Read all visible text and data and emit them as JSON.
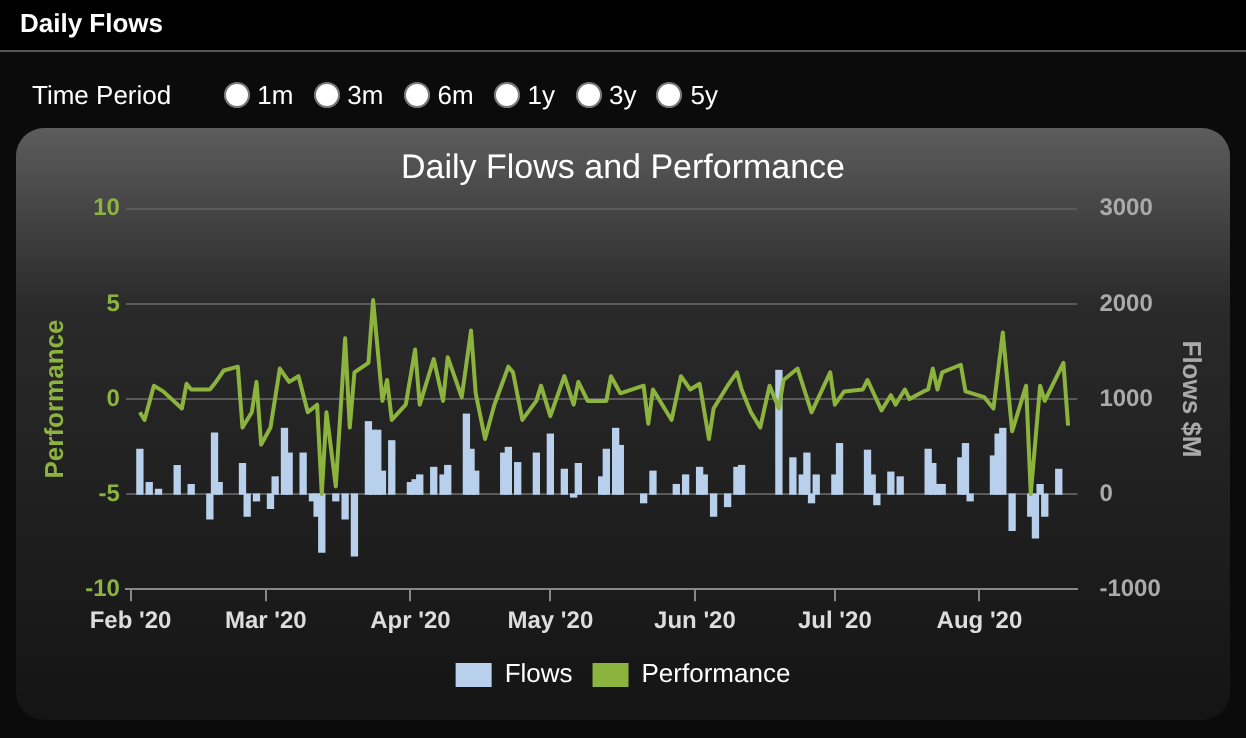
{
  "chart_data": {
    "type": "bar",
    "title": "Daily Flows and Performance",
    "ylabel": "Performance",
    "y2label": "Flows $M",
    "annotations": [
      "Daily Flows",
      "Time Period",
      "1m",
      "3m",
      "6m",
      "1y",
      "3y",
      "5y"
    ],
    "xlim": [
      "2020-01-31",
      "2020-08-22"
    ],
    "xticks": [
      {
        "value": "2020-02-01",
        "label": "Feb '20"
      },
      {
        "value": "2020-03-01",
        "label": "Mar '20"
      },
      {
        "value": "2020-04-01",
        "label": "Apr '20"
      },
      {
        "value": "2020-05-01",
        "label": "May '20"
      },
      {
        "value": "2020-06-01",
        "label": "Jun '20"
      },
      {
        "value": "2020-07-01",
        "label": "Jul '20"
      },
      {
        "value": "2020-08-01",
        "label": "Aug '20"
      }
    ],
    "ylim": [
      -10,
      10
    ],
    "yticks": [
      -10,
      -5,
      0,
      5,
      10
    ],
    "y2lim": [
      -1000,
      3000
    ],
    "y2ticks": [
      -1000,
      0,
      1000,
      2000,
      3000
    ],
    "grid": "y",
    "legend": "bottom",
    "marker": "none",
    "line_style": "solid",
    "series": [
      {
        "name": "Flows",
        "axis": "y2",
        "color": "#b9d0ec",
        "x": [
          "2020-02-03",
          "2020-02-05",
          "2020-02-07",
          "2020-02-11",
          "2020-02-14",
          "2020-02-18",
          "2020-02-19",
          "2020-02-20",
          "2020-02-25",
          "2020-02-26",
          "2020-02-28",
          "2020-03-02",
          "2020-03-03",
          "2020-03-05",
          "2020-03-06",
          "2020-03-09",
          "2020-03-11",
          "2020-03-12",
          "2020-03-13",
          "2020-03-16",
          "2020-03-18",
          "2020-03-20",
          "2020-03-23",
          "2020-03-24",
          "2020-03-25",
          "2020-03-26",
          "2020-03-28",
          "2020-04-01",
          "2020-04-02",
          "2020-04-03",
          "2020-04-06",
          "2020-04-08",
          "2020-04-09",
          "2020-04-13",
          "2020-04-14",
          "2020-04-15",
          "2020-04-21",
          "2020-04-22",
          "2020-04-24",
          "2020-04-28",
          "2020-05-01",
          "2020-05-04",
          "2020-05-06",
          "2020-05-07",
          "2020-05-12",
          "2020-05-13",
          "2020-05-15",
          "2020-05-16",
          "2020-05-21",
          "2020-05-23",
          "2020-05-28",
          "2020-05-30",
          "2020-06-02",
          "2020-06-03",
          "2020-06-05",
          "2020-06-08",
          "2020-06-10",
          "2020-06-11",
          "2020-06-19",
          "2020-06-22",
          "2020-06-24",
          "2020-06-25",
          "2020-06-26",
          "2020-06-27",
          "2020-07-01",
          "2020-07-02",
          "2020-07-08",
          "2020-07-09",
          "2020-07-10",
          "2020-07-13",
          "2020-07-15",
          "2020-07-21",
          "2020-07-22",
          "2020-07-23",
          "2020-07-24",
          "2020-07-28",
          "2020-07-29",
          "2020-07-30",
          "2020-08-04",
          "2020-08-05",
          "2020-08-06",
          "2020-08-08",
          "2020-08-12",
          "2020-08-13",
          "2020-08-14",
          "2020-08-15",
          "2020-08-18"
        ],
        "values": [
          470,
          120,
          50,
          300,
          100,
          -260,
          640,
          120,
          320,
          -230,
          -70,
          -150,
          180,
          690,
          430,
          430,
          -70,
          -230,
          -610,
          -70,
          -260,
          -650,
          760,
          670,
          670,
          240,
          560,
          120,
          150,
          200,
          280,
          200,
          300,
          840,
          470,
          240,
          430,
          490,
          330,
          430,
          630,
          260,
          -30,
          320,
          180,
          470,
          690,
          510,
          -90,
          240,
          100,
          200,
          280,
          200,
          -230,
          -130,
          280,
          300,
          1300,
          380,
          200,
          430,
          -90,
          200,
          200,
          530,
          460,
          200,
          -110,
          230,
          180,
          470,
          320,
          100,
          100,
          380,
          530,
          -70,
          400,
          630,
          690,
          -380,
          -230,
          -460,
          100,
          -230,
          260
        ]
      },
      {
        "name": "Performance",
        "type": "line",
        "axis": "y",
        "color": "#8db33f",
        "x": [
          "2020-02-03",
          "2020-02-04",
          "2020-02-06",
          "2020-02-08",
          "2020-02-12",
          "2020-02-13",
          "2020-02-14",
          "2020-02-18",
          "2020-02-19",
          "2020-02-21",
          "2020-02-24",
          "2020-02-25",
          "2020-02-27",
          "2020-02-28",
          "2020-02-29",
          "2020-03-02",
          "2020-03-04",
          "2020-03-06",
          "2020-03-08",
          "2020-03-10",
          "2020-03-12",
          "2020-03-13",
          "2020-03-14",
          "2020-03-16",
          "2020-03-18",
          "2020-03-19",
          "2020-03-20",
          "2020-03-23",
          "2020-03-24",
          "2020-03-26",
          "2020-03-27",
          "2020-03-28",
          "2020-03-31",
          "2020-04-02",
          "2020-04-03",
          "2020-04-06",
          "2020-04-08",
          "2020-04-09",
          "2020-04-12",
          "2020-04-14",
          "2020-04-15",
          "2020-04-17",
          "2020-04-19",
          "2020-04-22",
          "2020-04-23",
          "2020-04-25",
          "2020-04-28",
          "2020-04-29",
          "2020-05-01",
          "2020-05-04",
          "2020-05-06",
          "2020-05-07",
          "2020-05-09",
          "2020-05-13",
          "2020-05-14",
          "2020-05-16",
          "2020-05-21",
          "2020-05-22",
          "2020-05-23",
          "2020-05-27",
          "2020-05-29",
          "2020-05-31",
          "2020-06-02",
          "2020-06-04",
          "2020-06-05",
          "2020-06-08",
          "2020-06-10",
          "2020-06-11",
          "2020-06-13",
          "2020-06-15",
          "2020-06-17",
          "2020-06-19",
          "2020-06-20",
          "2020-06-23",
          "2020-06-26",
          "2020-06-30",
          "2020-07-01",
          "2020-07-03",
          "2020-07-07",
          "2020-07-08",
          "2020-07-11",
          "2020-07-13",
          "2020-07-14",
          "2020-07-16",
          "2020-07-17",
          "2020-07-20",
          "2020-07-21",
          "2020-07-22",
          "2020-07-23",
          "2020-07-24",
          "2020-07-28",
          "2020-07-29",
          "2020-08-02",
          "2020-08-04",
          "2020-08-06",
          "2020-08-08",
          "2020-08-11",
          "2020-08-12",
          "2020-08-14",
          "2020-08-15",
          "2020-08-19",
          "2020-08-20"
        ],
        "values": [
          -0.7,
          -1.1,
          0.7,
          0.4,
          -0.5,
          0.8,
          0.5,
          0.5,
          0.8,
          1.5,
          1.7,
          -1.5,
          -0.7,
          0.9,
          -2.4,
          -1.5,
          1.6,
          0.9,
          1.2,
          -0.7,
          -0.3,
          -5,
          -0.7,
          -4.6,
          3.2,
          -1.5,
          1.4,
          1.9,
          5.2,
          -0.1,
          1,
          -1.1,
          -0.3,
          2.6,
          -0.3,
          2.1,
          -0.1,
          2.2,
          0.1,
          3.6,
          0.3,
          -2.1,
          -0.3,
          1.7,
          1.4,
          -1.1,
          -0.1,
          0.7,
          -0.9,
          1.2,
          -0.3,
          0.9,
          -0.1,
          -0.1,
          1.2,
          0.3,
          0.7,
          -1.3,
          0.5,
          -1.1,
          1.2,
          0.5,
          0.8,
          -2.1,
          -0.5,
          0.7,
          1.4,
          0.5,
          -0.7,
          -1.5,
          0.7,
          -0.5,
          1,
          1.6,
          -0.7,
          1.4,
          -0.3,
          0.4,
          0.5,
          1,
          -0.6,
          0.2,
          -0.3,
          0.5,
          0,
          0.4,
          0.5,
          1.6,
          0.5,
          1.4,
          1.8,
          0.4,
          0.1,
          -0.5,
          3.5,
          -1.7,
          0.7,
          -5,
          0.7,
          -0.1,
          1.9,
          -1.4
        ]
      }
    ]
  }
}
